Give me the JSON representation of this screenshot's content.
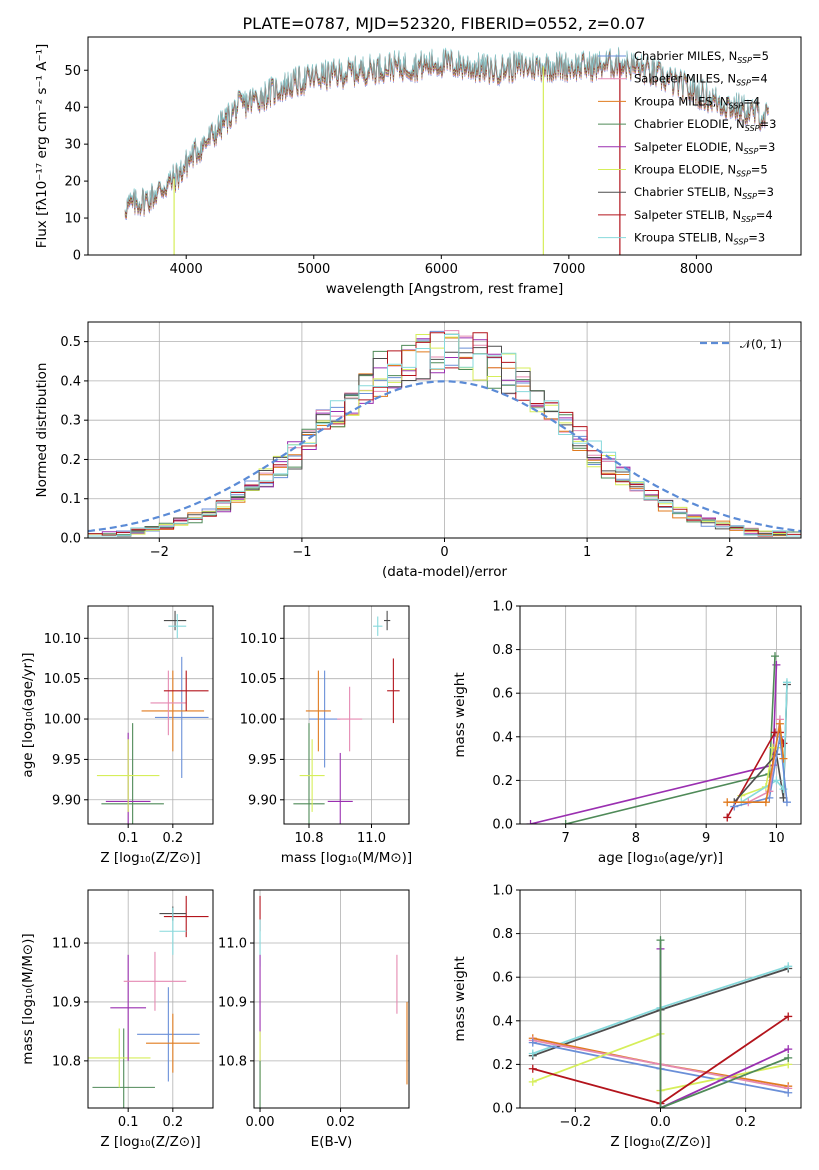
{
  "figure": {
    "title": "PLATE=0787, MJD=52320, FIBERID=0552, z=0.07"
  },
  "models": [
    {
      "name": "Chabrier MILES",
      "nssp": "5",
      "color": "#6a8fd8"
    },
    {
      "name": "Salpeter MILES",
      "nssp": "4",
      "color": "#e58ab2"
    },
    {
      "name": "Kroupa MILES",
      "nssp": "4",
      "color": "#e07b1f"
    },
    {
      "name": "Chabrier ELODIE",
      "nssp": "3",
      "color": "#4f8a58"
    },
    {
      "name": "Salpeter ELODIE",
      "nssp": "3",
      "color": "#9a2fb0"
    },
    {
      "name": "Kroupa ELODIE",
      "nssp": "5",
      "color": "#d6ee5a"
    },
    {
      "name": "Chabrier STELIB",
      "nssp": "3",
      "color": "#4d4d4d"
    },
    {
      "name": "Salpeter STELIB",
      "nssp": "4",
      "color": "#b3141c"
    },
    {
      "name": "Kroupa STELIB",
      "nssp": "3",
      "color": "#87d9dc"
    }
  ],
  "chart_data": [
    {
      "id": "spectrum",
      "type": "line",
      "xlabel": "wavelength [Angstrom, rest frame]",
      "ylabel": "Flux [fλ10⁻¹⁷ erg cm⁻² s⁻¹ A⁻¹]",
      "xlim": [
        3230,
        8820
      ],
      "ylim": [
        0,
        59
      ],
      "xticks": [
        4000,
        5000,
        6000,
        7000,
        8000
      ],
      "yticks": [
        0,
        10,
        20,
        30,
        40,
        50
      ],
      "grid": false,
      "legend": "top-right",
      "legend_suffix": ", N",
      "legend_sub": "SSP",
      "continuum": {
        "x": [
          3520,
          3700,
          3850,
          3950,
          4050,
          4200,
          4400,
          4600,
          4800,
          5000,
          5200,
          5400,
          5600,
          5800,
          6000,
          6200,
          6400,
          6600,
          6800,
          7000,
          7200,
          7400,
          7600,
          7800,
          8000,
          8200,
          8400,
          8570
        ],
        "y": [
          13,
          15,
          19,
          22,
          27,
          32,
          40,
          43,
          46,
          48,
          49,
          50,
          51,
          51,
          52,
          51,
          50,
          51,
          51,
          51,
          51,
          52,
          50,
          47,
          44,
          41,
          39,
          37
        ]
      },
      "spikes": [
        {
          "x": 3905,
          "y": 0,
          "series": "Kroupa ELODIE"
        },
        {
          "x": 6800,
          "y": 0,
          "series": "Kroupa ELODIE"
        },
        {
          "x": 7400,
          "y": 0,
          "series": "Salpeter STELIB"
        }
      ]
    },
    {
      "id": "residuals",
      "type": "histogram",
      "xlabel": "(data-model)/error",
      "ylabel": "Normed distribution",
      "xlim": [
        -2.5,
        2.5
      ],
      "ylim": [
        0,
        0.55
      ],
      "xticks": [
        -2,
        -1,
        0,
        1,
        2
      ],
      "yticks": [
        0.0,
        0.1,
        0.2,
        0.3,
        0.4,
        0.5
      ],
      "grid": true,
      "legend": "top-right",
      "reference": {
        "label": "𝒩(0, 1)",
        "mean": 0,
        "sigma": 1,
        "color": "#5b8bd6"
      },
      "bin_width": 0.1,
      "envelope_sigma": 0.83
    },
    {
      "id": "age-vs-z",
      "type": "errorbar",
      "xlabel": "Z [log₁₀(Z/Z⊙)]",
      "ylabel": "age  [log₁₀(age/yr)]",
      "xlim": [
        0.01,
        0.29
      ],
      "ylim": [
        9.87,
        10.14
      ],
      "xticks": [
        0.1,
        0.2
      ],
      "yticks": [
        9.9,
        9.95,
        10.0,
        10.05,
        10.1
      ],
      "grid": true,
      "points": [
        {
          "series": "Chabrier ELODIE",
          "x": 0.11,
          "xerr": 0.07,
          "y": 9.895,
          "yerr": 0.1
        },
        {
          "series": "Salpeter ELODIE",
          "x": 0.1,
          "xerr": 0.05,
          "y": 9.898,
          "yerr": 0.085
        },
        {
          "series": "Kroupa ELODIE",
          "x": 0.1,
          "xerr": 0.07,
          "y": 9.93,
          "yerr": 0.045
        },
        {
          "series": "Chabrier MILES",
          "x": 0.22,
          "xerr": 0.06,
          "y": 10.002,
          "yerr": 0.075
        },
        {
          "series": "Kroupa MILES",
          "x": 0.2,
          "xerr": 0.07,
          "y": 10.01,
          "yerr": 0.05
        },
        {
          "series": "Salpeter MILES",
          "x": 0.19,
          "xerr": 0.04,
          "y": 10.02,
          "yerr": 0.04
        },
        {
          "series": "Salpeter STELIB",
          "x": 0.23,
          "xerr": 0.05,
          "y": 10.035,
          "yerr": 0.025
        },
        {
          "series": "Chabrier STELIB",
          "x": 0.205,
          "xerr": 0.025,
          "y": 10.122,
          "yerr": 0.012
        },
        {
          "series": "Kroupa STELIB",
          "x": 0.21,
          "xerr": 0.02,
          "y": 10.115,
          "yerr": 0.015
        }
      ]
    },
    {
      "id": "age-vs-mass",
      "type": "errorbar",
      "xlabel": "mass [log₁₀(M/M⊙)]",
      "ylabel": "",
      "xlim": [
        10.72,
        11.12
      ],
      "ylim": [
        9.87,
        10.14
      ],
      "xticks": [
        10.8,
        11.0
      ],
      "yticks": [
        9.9,
        9.95,
        10.0,
        10.05,
        10.1
      ],
      "grid": true,
      "points": [
        {
          "series": "Chabrier ELODIE",
          "x": 10.8,
          "xerr": 0.05,
          "y": 9.895,
          "yerr": 0.1
        },
        {
          "series": "Salpeter ELODIE",
          "x": 10.9,
          "xerr": 0.04,
          "y": 9.898,
          "yerr": 0.06
        },
        {
          "series": "Kroupa ELODIE",
          "x": 10.81,
          "xerr": 0.04,
          "y": 9.93,
          "yerr": 0.045
        },
        {
          "series": "Chabrier MILES",
          "x": 10.85,
          "xerr": 0.05,
          "y": 10.0,
          "yerr": 0.06
        },
        {
          "series": "Kroupa MILES",
          "x": 10.83,
          "xerr": 0.04,
          "y": 10.01,
          "yerr": 0.05
        },
        {
          "series": "Salpeter MILES",
          "x": 10.93,
          "xerr": 0.04,
          "y": 10.0,
          "yerr": 0.04
        },
        {
          "series": "Salpeter STELIB",
          "x": 11.07,
          "xerr": 0.02,
          "y": 10.035,
          "yerr": 0.04
        },
        {
          "series": "Chabrier STELIB",
          "x": 11.05,
          "xerr": 0.01,
          "y": 10.122,
          "yerr": 0.012
        },
        {
          "series": "Kroupa STELIB",
          "x": 11.02,
          "xerr": 0.015,
          "y": 10.115,
          "yerr": 0.012
        }
      ]
    },
    {
      "id": "weight-vs-age",
      "type": "line",
      "xlabel": "age  [log₁₀(age/yr)]",
      "ylabel": "mass weight",
      "xlim": [
        6.35,
        10.35
      ],
      "ylim": [
        0,
        1.0
      ],
      "xticks": [
        7,
        8,
        9,
        10
      ],
      "yticks": [
        0.0,
        0.2,
        0.4,
        0.6,
        0.8,
        1.0
      ],
      "grid": true,
      "series": [
        {
          "name": "Salpeter ELODIE",
          "x": [
            6.5,
            9.95,
            10.0
          ],
          "y": [
            0.0,
            0.27,
            0.73
          ]
        },
        {
          "name": "Chabrier ELODIE",
          "x": [
            7.0,
            9.9,
            9.98
          ],
          "y": [
            0.0,
            0.23,
            0.77
          ]
        },
        {
          "name": "Kroupa ELODIE",
          "x": [
            9.5,
            9.85,
            9.95,
            10.0
          ],
          "y": [
            0.13,
            0.17,
            0.35,
            0.35
          ]
        },
        {
          "name": "Salpeter STELIB",
          "x": [
            9.3,
            9.98,
            10.05,
            10.1
          ],
          "y": [
            0.03,
            0.42,
            0.42,
            0.37
          ]
        },
        {
          "name": "Chabrier STELIB",
          "x": [
            9.4,
            10.0,
            10.1,
            10.15
          ],
          "y": [
            0.1,
            0.32,
            0.12,
            0.64
          ]
        },
        {
          "name": "Kroupa STELIB",
          "x": [
            9.5,
            10.0,
            10.1,
            10.15
          ],
          "y": [
            0.1,
            0.2,
            0.16,
            0.65
          ]
        },
        {
          "name": "Chabrier MILES",
          "x": [
            9.4,
            9.9,
            10.05,
            10.15
          ],
          "y": [
            0.08,
            0.12,
            0.4,
            0.1
          ]
        },
        {
          "name": "Salpeter MILES",
          "x": [
            9.6,
            9.9,
            10.05
          ],
          "y": [
            0.1,
            0.15,
            0.48
          ]
        },
        {
          "name": "Kroupa MILES",
          "x": [
            9.3,
            9.85,
            10.05,
            10.1
          ],
          "y": [
            0.1,
            0.1,
            0.46,
            0.3
          ]
        }
      ]
    },
    {
      "id": "mass-vs-z",
      "type": "errorbar",
      "xlabel": "Z [log₁₀(Z/Z⊙)]",
      "ylabel": "mass [log₁₀(M/M⊙)]",
      "xlim": [
        0.01,
        0.29
      ],
      "ylim": [
        10.72,
        11.09
      ],
      "xticks": [
        0.1,
        0.2
      ],
      "yticks": [
        10.8,
        10.9,
        11.0
      ],
      "grid": true,
      "points": [
        {
          "series": "Chabrier ELODIE",
          "x": 0.09,
          "xerr": 0.07,
          "y": 10.755,
          "yerr": 0.1
        },
        {
          "series": "Kroupa ELODIE",
          "x": 0.08,
          "xerr": 0.07,
          "y": 10.805,
          "yerr": 0.05
        },
        {
          "series": "Salpeter ELODIE",
          "x": 0.1,
          "xerr": 0.04,
          "y": 10.89,
          "yerr": 0.09
        },
        {
          "series": "Salpeter MILES",
          "x": 0.16,
          "xerr": 0.07,
          "y": 10.935,
          "yerr": 0.05
        },
        {
          "series": "Chabrier MILES",
          "x": 0.19,
          "xerr": 0.07,
          "y": 10.845,
          "yerr": 0.08
        },
        {
          "series": "Kroupa MILES",
          "x": 0.2,
          "xerr": 0.06,
          "y": 10.83,
          "yerr": 0.05
        },
        {
          "series": "Salpeter STELIB",
          "x": 0.23,
          "xerr": 0.05,
          "y": 11.045,
          "yerr": 0.035
        },
        {
          "series": "Chabrier STELIB",
          "x": 0.2,
          "xerr": 0.03,
          "y": 11.05,
          "yerr": 0.012
        },
        {
          "series": "Kroupa STELIB",
          "x": 0.2,
          "xerr": 0.03,
          "y": 11.02,
          "yerr": 0.04
        }
      ]
    },
    {
      "id": "mass-vs-ebv",
      "type": "errorbar",
      "xlabel": "E(B-V)",
      "ylabel": "",
      "xlim": [
        -0.0015,
        0.037
      ],
      "ylim": [
        10.72,
        11.09
      ],
      "xticks": [
        0.0,
        0.02
      ],
      "yticks": [
        10.8,
        10.9,
        11.0
      ],
      "grid": true,
      "points": [
        {
          "series": "Salpeter STELIB",
          "x": 0.0,
          "xerr": 0.0,
          "y": 11.05,
          "yerr": 0.03
        },
        {
          "series": "Kroupa STELIB",
          "x": 0.0,
          "xerr": 0.0,
          "y": 11.0,
          "yerr": 0.04
        },
        {
          "series": "Salpeter ELODIE",
          "x": 0.0,
          "xerr": 0.0,
          "y": 10.89,
          "yerr": 0.09
        },
        {
          "series": "Kroupa ELODIE",
          "x": 0.0,
          "xerr": 0.0,
          "y": 10.8,
          "yerr": 0.05
        },
        {
          "series": "Chabrier ELODIE",
          "x": 0.0,
          "xerr": 0.0,
          "y": 10.76,
          "yerr": 0.04
        },
        {
          "series": "Salpeter MILES",
          "x": 0.034,
          "xerr": 0.0,
          "y": 10.93,
          "yerr": 0.05
        },
        {
          "series": "Kroupa MILES",
          "x": 0.0365,
          "xerr": 0.0,
          "y": 10.83,
          "yerr": 0.07
        }
      ]
    },
    {
      "id": "weight-vs-z",
      "type": "line",
      "xlabel": "Z [log₁₀(Z/Z⊙)]",
      "ylabel": "mass weight",
      "xlim": [
        -0.33,
        0.33
      ],
      "ylim": [
        0,
        1.0
      ],
      "xticks": [
        -0.2,
        0.0,
        0.2
      ],
      "yticks": [
        0.0,
        0.2,
        0.4,
        0.6,
        0.8,
        1.0
      ],
      "grid": true,
      "series": [
        {
          "name": "Chabrier STELIB",
          "x": [
            -0.3,
            0.0,
            0.3
          ],
          "y": [
            0.24,
            0.45,
            0.64
          ]
        },
        {
          "name": "Kroupa STELIB",
          "x": [
            -0.3,
            0.0,
            0.3
          ],
          "y": [
            0.25,
            0.46,
            0.65
          ]
        },
        {
          "name": "Kroupa MILES",
          "x": [
            -0.3,
            0.0,
            0.3
          ],
          "y": [
            0.32,
            0.2,
            0.1
          ]
        },
        {
          "name": "Salpeter MILES",
          "x": [
            -0.3,
            0.0,
            0.3
          ],
          "y": [
            0.31,
            0.2,
            0.09
          ]
        },
        {
          "name": "Chabrier MILES",
          "x": [
            -0.3,
            0.0,
            0.3
          ],
          "y": [
            0.3,
            0.18,
            0.07
          ]
        },
        {
          "name": "Kroupa ELODIE",
          "x": [
            -0.3,
            0.0,
            0.0,
            0.3
          ],
          "y": [
            0.12,
            0.34,
            0.08,
            0.2
          ]
        },
        {
          "name": "Salpeter STELIB",
          "x": [
            -0.3,
            0.0,
            0.3
          ],
          "y": [
            0.18,
            0.02,
            0.42
          ]
        },
        {
          "name": "Salpeter ELODIE",
          "x": [
            0.0,
            0.0,
            0.3
          ],
          "y": [
            0.73,
            0.0,
            0.27
          ]
        },
        {
          "name": "Chabrier ELODIE",
          "x": [
            0.0,
            0.0,
            0.3
          ],
          "y": [
            0.77,
            0.0,
            0.23
          ]
        }
      ]
    }
  ]
}
